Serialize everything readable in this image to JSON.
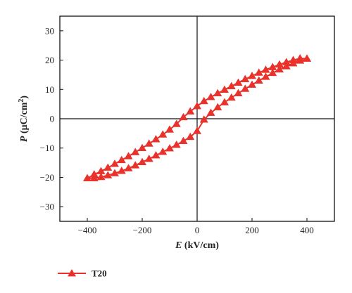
{
  "chart_data": {
    "type": "line",
    "title": "",
    "xlabel": {
      "symbol": "E",
      "unit": " (kV/cm)"
    },
    "ylabel": {
      "symbol": "P",
      "unit_pre": " (μC/cm",
      "unit_sup": "2",
      "unit_post": ")"
    },
    "xlim": [
      -500,
      500
    ],
    "ylim": [
      -35,
      35
    ],
    "xticks": [
      -400,
      -200,
      0,
      200,
      400
    ],
    "yticks": [
      -30,
      -20,
      -10,
      0,
      10,
      20,
      30
    ],
    "legend_position": "bottom-left",
    "series": [
      {
        "name": "T20",
        "color": "#e8322b",
        "marker": "triangle",
        "points": [
          [
            400,
            20.5
          ],
          [
            375,
            19.8
          ],
          [
            350,
            18.9
          ],
          [
            325,
            17.9
          ],
          [
            300,
            16.8
          ],
          [
            275,
            15.6
          ],
          [
            250,
            14.3
          ],
          [
            225,
            13.0
          ],
          [
            200,
            11.6
          ],
          [
            175,
            10.2
          ],
          [
            150,
            8.7
          ],
          [
            125,
            7.2
          ],
          [
            100,
            5.6
          ],
          [
            75,
            3.9
          ],
          [
            50,
            2.0
          ],
          [
            25,
            -0.3
          ],
          [
            0,
            -4.2
          ],
          [
            -25,
            -6.2
          ],
          [
            -50,
            -7.6
          ],
          [
            -75,
            -8.9
          ],
          [
            -100,
            -10.1
          ],
          [
            -125,
            -11.3
          ],
          [
            -150,
            -12.5
          ],
          [
            -175,
            -13.7
          ],
          [
            -200,
            -14.8
          ],
          [
            -225,
            -15.9
          ],
          [
            -250,
            -16.9
          ],
          [
            -275,
            -17.8
          ],
          [
            -300,
            -18.6
          ],
          [
            -325,
            -19.3
          ],
          [
            -350,
            -19.9
          ],
          [
            -375,
            -20.3
          ],
          [
            -400,
            -20.3
          ],
          [
            -375,
            -19.0
          ],
          [
            -350,
            -17.9
          ],
          [
            -325,
            -16.7
          ],
          [
            -300,
            -15.4
          ],
          [
            -275,
            -14.1
          ],
          [
            -250,
            -12.8
          ],
          [
            -225,
            -11.4
          ],
          [
            -200,
            -10.0
          ],
          [
            -175,
            -8.5
          ],
          [
            -150,
            -7.0
          ],
          [
            -125,
            -5.4
          ],
          [
            -100,
            -3.7
          ],
          [
            -75,
            -1.8
          ],
          [
            -50,
            0.5
          ],
          [
            -25,
            2.5
          ],
          [
            0,
            4.3
          ],
          [
            25,
            6.0
          ],
          [
            50,
            7.4
          ],
          [
            75,
            8.7
          ],
          [
            100,
            9.9
          ],
          [
            125,
            11.1
          ],
          [
            150,
            12.3
          ],
          [
            175,
            13.5
          ],
          [
            200,
            14.6
          ],
          [
            225,
            15.7
          ],
          [
            250,
            16.7
          ],
          [
            275,
            17.6
          ],
          [
            300,
            18.5
          ],
          [
            325,
            19.3
          ],
          [
            350,
            20.0
          ],
          [
            375,
            20.6
          ],
          [
            400,
            20.5
          ]
        ]
      }
    ]
  }
}
